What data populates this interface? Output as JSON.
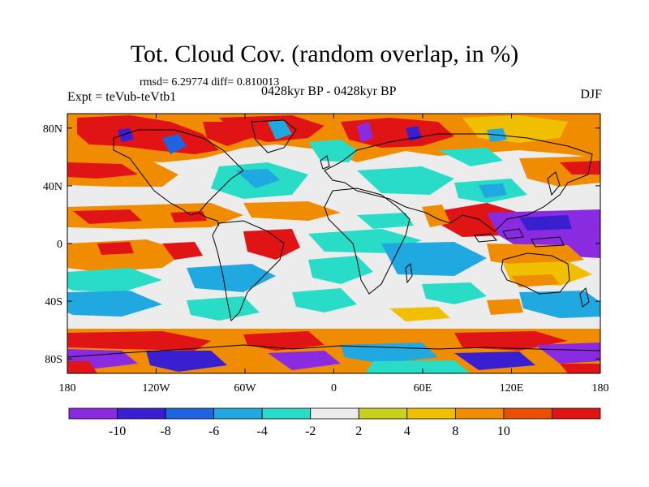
{
  "title": "Tot. Cloud Cov. (random overlap, in %)",
  "stats_line": "rmsd= 6.29774 diff= 0.810013",
  "expt_label": "Expt = teVub-teVtb1",
  "period_label": "0428kyr BP - 0428kyr BP",
  "season_label": "DJF",
  "lat_ticks": [
    {
      "label": "80N",
      "lat": 80
    },
    {
      "label": "40N",
      "lat": 40
    },
    {
      "label": "0",
      "lat": 0
    },
    {
      "label": "40S",
      "lat": -40
    },
    {
      "label": "80S",
      "lat": -80
    }
  ],
  "lon_ticks": [
    {
      "label": "180",
      "lon": -180
    },
    {
      "label": "120W",
      "lon": -120
    },
    {
      "label": "60W",
      "lon": -60
    },
    {
      "label": "0",
      "lon": 0
    },
    {
      "label": "60E",
      "lon": 60
    },
    {
      "label": "120E",
      "lon": 120
    },
    {
      "label": "180",
      "lon": 180
    }
  ],
  "colorbar": {
    "colors": [
      "#8a2be2",
      "#3a1fd0",
      "#1e64e0",
      "#20a8e0",
      "#28dcc8",
      "#ececec",
      "#c8d020",
      "#f0c000",
      "#f08c00",
      "#e85000",
      "#e01414"
    ],
    "labels": [
      "-10",
      "-8",
      "-6",
      "-4",
      "-2",
      "2",
      "4",
      "8",
      "10"
    ]
  },
  "map_colors": {
    "background": "#ececec",
    "red": "#e01414",
    "orange": "#f08c00",
    "yellow": "#f0c000",
    "teal": "#28dcc8",
    "cyan": "#20a8e0",
    "blue": "#1e64e0",
    "purple": "#8a2be2",
    "coast": "#000000"
  }
}
